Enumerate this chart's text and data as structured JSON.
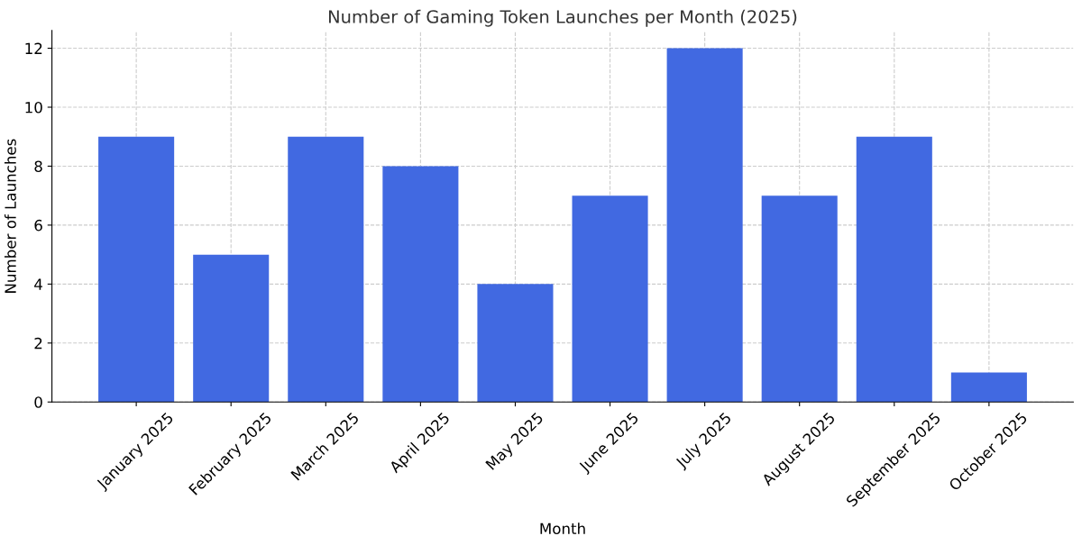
{
  "chart_data": {
    "type": "bar",
    "title": "Number of Gaming Token Launches per Month (2025)",
    "xlabel": "Month",
    "ylabel": "Number of Launches",
    "categories": [
      "January 2025",
      "February 2025",
      "March 2025",
      "April 2025",
      "May 2025",
      "June 2025",
      "July 2025",
      "August 2025",
      "September 2025",
      "October 2025"
    ],
    "values": [
      9,
      5,
      9,
      8,
      4,
      7,
      12,
      7,
      9,
      1
    ],
    "color": "#4169e1",
    "ylim": [
      0,
      12.6
    ],
    "yticks": [
      0,
      2,
      4,
      6,
      8,
      10,
      12
    ],
    "grid": true
  }
}
